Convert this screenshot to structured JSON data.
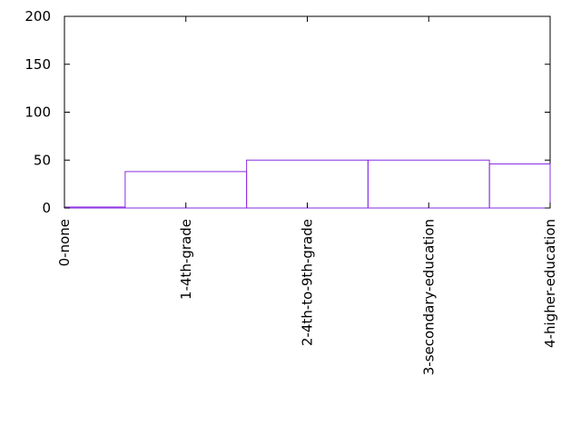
{
  "chart_data": {
    "type": "bar",
    "style": "steps",
    "categories": [
      "0-none",
      "1-4th-grade",
      "2-4th-to-9th-grade",
      "3-secondary-education",
      "4-higher-education"
    ],
    "series": [
      {
        "values": [
          1,
          38,
          50,
          50,
          46
        ],
        "color": "#8a2be2"
      }
    ],
    "title": "",
    "xlabel": "",
    "ylabel": "",
    "xlim": [
      0,
      4
    ],
    "ylim": [
      0,
      200
    ],
    "yticks": [
      0,
      50,
      100,
      150,
      200
    ],
    "grid": false,
    "legend": "none",
    "axis_color": "#000000"
  }
}
